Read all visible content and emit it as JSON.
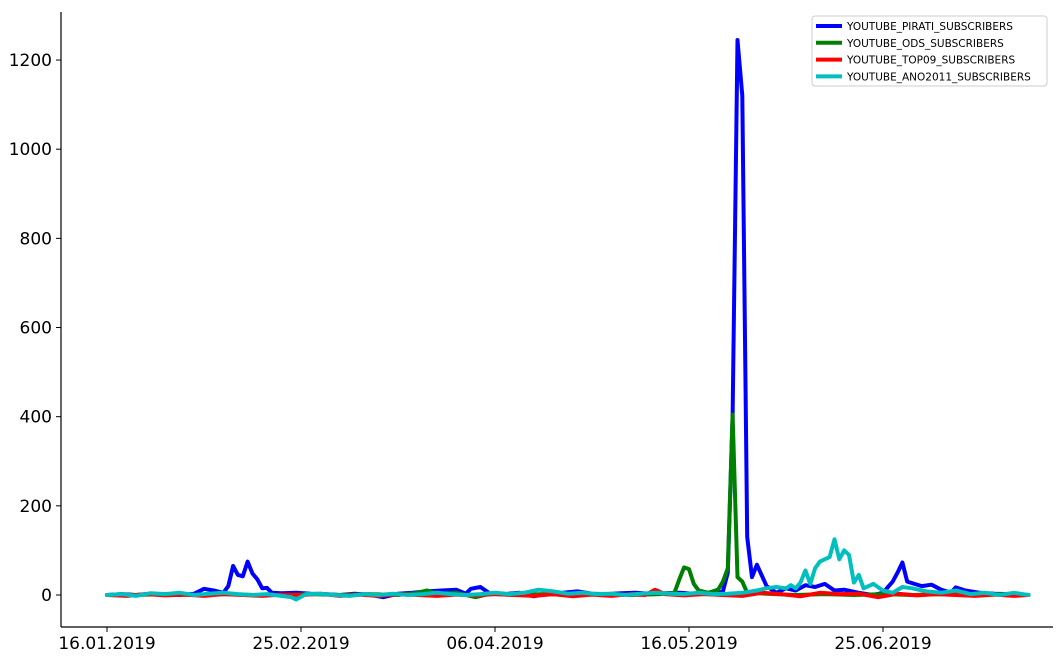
{
  "chart_data": {
    "type": "line",
    "title": "",
    "xlabel": "",
    "ylabel": "",
    "x_range": [
      "2019-01-16",
      "2019-07-25"
    ],
    "ylim": [
      -70,
      1310
    ],
    "grid": false,
    "legend_position": "top-right",
    "x_ticks": [
      "16.01.2019",
      "25.02.2019",
      "06.04.2019",
      "16.05.2019",
      "25.06.2019"
    ],
    "x_tick_dates": [
      "2019-01-16",
      "2019-02-25",
      "2019-04-06",
      "2019-05-16",
      "2019-06-25"
    ],
    "y_ticks": [
      "0",
      "200",
      "400",
      "600",
      "800",
      "1000",
      "1200"
    ],
    "y_tick_values": [
      0,
      200,
      400,
      600,
      800,
      1000,
      1200
    ],
    "series": [
      {
        "name": "YOUTUBE_PIRATI_SUBSCRIBERS",
        "color": "#0000ff",
        "points": [
          [
            "2019-01-16",
            0
          ],
          [
            "2019-01-19",
            2
          ],
          [
            "2019-01-22",
            0
          ],
          [
            "2019-01-25",
            3
          ],
          [
            "2019-01-28",
            1
          ],
          [
            "2019-01-31",
            0
          ],
          [
            "2019-02-03",
            3
          ],
          [
            "2019-02-05",
            14
          ],
          [
            "2019-02-07",
            10
          ],
          [
            "2019-02-09",
            5
          ],
          [
            "2019-02-10",
            20
          ],
          [
            "2019-02-11",
            65
          ],
          [
            "2019-02-12",
            45
          ],
          [
            "2019-02-13",
            42
          ],
          [
            "2019-02-14",
            75
          ],
          [
            "2019-02-15",
            48
          ],
          [
            "2019-02-16",
            35
          ],
          [
            "2019-02-17",
            15
          ],
          [
            "2019-02-18",
            16
          ],
          [
            "2019-02-19",
            5
          ],
          [
            "2019-02-21",
            4
          ],
          [
            "2019-02-24",
            5
          ],
          [
            "2019-02-27",
            3
          ],
          [
            "2019-03-02",
            2
          ],
          [
            "2019-03-05",
            0
          ],
          [
            "2019-03-08",
            3
          ],
          [
            "2019-03-11",
            1
          ],
          [
            "2019-03-14",
            -5
          ],
          [
            "2019-03-17",
            3
          ],
          [
            "2019-03-20",
            5
          ],
          [
            "2019-03-23",
            8
          ],
          [
            "2019-03-26",
            10
          ],
          [
            "2019-03-29",
            12
          ],
          [
            "2019-03-31",
            3
          ],
          [
            "2019-04-01",
            14
          ],
          [
            "2019-04-03",
            18
          ],
          [
            "2019-04-05",
            3
          ],
          [
            "2019-04-08",
            2
          ],
          [
            "2019-04-11",
            5
          ],
          [
            "2019-04-14",
            -3
          ],
          [
            "2019-04-17",
            3
          ],
          [
            "2019-04-20",
            5
          ],
          [
            "2019-04-23",
            8
          ],
          [
            "2019-04-26",
            3
          ],
          [
            "2019-04-29",
            2
          ],
          [
            "2019-05-02",
            4
          ],
          [
            "2019-05-05",
            5
          ],
          [
            "2019-05-08",
            3
          ],
          [
            "2019-05-11",
            4
          ],
          [
            "2019-05-14",
            5
          ],
          [
            "2019-05-17",
            3
          ],
          [
            "2019-05-20",
            5
          ],
          [
            "2019-05-23",
            8
          ],
          [
            "2019-05-24",
            50
          ],
          [
            "2019-05-25",
            400
          ],
          [
            "2019-05-26",
            1245
          ],
          [
            "2019-05-27",
            1120
          ],
          [
            "2019-05-28",
            130
          ],
          [
            "2019-05-29",
            40
          ],
          [
            "2019-05-30",
            68
          ],
          [
            "2019-06-01",
            20
          ],
          [
            "2019-06-03",
            5
          ],
          [
            "2019-06-05",
            15
          ],
          [
            "2019-06-07",
            10
          ],
          [
            "2019-06-09",
            22
          ],
          [
            "2019-06-11",
            18
          ],
          [
            "2019-06-13",
            25
          ],
          [
            "2019-06-15",
            10
          ],
          [
            "2019-06-17",
            12
          ],
          [
            "2019-06-20",
            5
          ],
          [
            "2019-06-23",
            0
          ],
          [
            "2019-06-25",
            5
          ],
          [
            "2019-06-27",
            30
          ],
          [
            "2019-06-28",
            50
          ],
          [
            "2019-06-29",
            73
          ],
          [
            "2019-06-30",
            30
          ],
          [
            "2019-07-03",
            20
          ],
          [
            "2019-07-05",
            23
          ],
          [
            "2019-07-07",
            12
          ],
          [
            "2019-07-09",
            5
          ],
          [
            "2019-07-10",
            17
          ],
          [
            "2019-07-12",
            10
          ],
          [
            "2019-07-15",
            5
          ],
          [
            "2019-07-18",
            3
          ],
          [
            "2019-07-21",
            2
          ],
          [
            "2019-07-25",
            0
          ]
        ]
      },
      {
        "name": "YOUTUBE_ODS_SUBSCRIBERS",
        "color": "#008000",
        "points": [
          [
            "2019-01-16",
            0
          ],
          [
            "2019-01-22",
            0
          ],
          [
            "2019-01-28",
            2
          ],
          [
            "2019-02-03",
            0
          ],
          [
            "2019-02-09",
            2
          ],
          [
            "2019-02-15",
            0
          ],
          [
            "2019-02-21",
            0
          ],
          [
            "2019-02-27",
            2
          ],
          [
            "2019-03-05",
            0
          ],
          [
            "2019-03-11",
            2
          ],
          [
            "2019-03-17",
            0
          ],
          [
            "2019-03-21",
            5
          ],
          [
            "2019-03-23",
            10
          ],
          [
            "2019-03-25",
            3
          ],
          [
            "2019-03-29",
            5
          ],
          [
            "2019-04-02",
            -5
          ],
          [
            "2019-04-05",
            3
          ],
          [
            "2019-04-10",
            0
          ],
          [
            "2019-04-16",
            2
          ],
          [
            "2019-04-22",
            0
          ],
          [
            "2019-04-28",
            2
          ],
          [
            "2019-05-04",
            0
          ],
          [
            "2019-05-10",
            2
          ],
          [
            "2019-05-13",
            5
          ],
          [
            "2019-05-14",
            35
          ],
          [
            "2019-05-15",
            62
          ],
          [
            "2019-05-16",
            58
          ],
          [
            "2019-05-17",
            25
          ],
          [
            "2019-05-18",
            10
          ],
          [
            "2019-05-20",
            5
          ],
          [
            "2019-05-22",
            12
          ],
          [
            "2019-05-23",
            30
          ],
          [
            "2019-05-24",
            60
          ],
          [
            "2019-05-25",
            405
          ],
          [
            "2019-05-26",
            40
          ],
          [
            "2019-05-27",
            30
          ],
          [
            "2019-05-28",
            5
          ],
          [
            "2019-06-01",
            3
          ],
          [
            "2019-06-07",
            0
          ],
          [
            "2019-06-13",
            2
          ],
          [
            "2019-06-19",
            0
          ],
          [
            "2019-06-25",
            2
          ],
          [
            "2019-07-01",
            0
          ],
          [
            "2019-07-07",
            2
          ],
          [
            "2019-07-13",
            0
          ],
          [
            "2019-07-19",
            2
          ],
          [
            "2019-07-25",
            0
          ]
        ]
      },
      {
        "name": "YOUTUBE_TOP09_SUBSCRIBERS",
        "color": "#ff0000",
        "points": [
          [
            "2019-01-16",
            0
          ],
          [
            "2019-01-20",
            -2
          ],
          [
            "2019-01-24",
            2
          ],
          [
            "2019-01-28",
            -1
          ],
          [
            "2019-02-01",
            1
          ],
          [
            "2019-02-05",
            -2
          ],
          [
            "2019-02-09",
            2
          ],
          [
            "2019-02-13",
            0
          ],
          [
            "2019-02-17",
            -2
          ],
          [
            "2019-02-21",
            1
          ],
          [
            "2019-02-25",
            0
          ],
          [
            "2019-03-01",
            3
          ],
          [
            "2019-03-05",
            -2
          ],
          [
            "2019-03-09",
            1
          ],
          [
            "2019-03-13",
            -2
          ],
          [
            "2019-03-17",
            2
          ],
          [
            "2019-03-21",
            0
          ],
          [
            "2019-03-25",
            -2
          ],
          [
            "2019-03-29",
            1
          ],
          [
            "2019-04-02",
            -1
          ],
          [
            "2019-04-06",
            2
          ],
          [
            "2019-04-10",
            0
          ],
          [
            "2019-04-14",
            -2
          ],
          [
            "2019-04-18",
            2
          ],
          [
            "2019-04-22",
            -3
          ],
          [
            "2019-04-26",
            1
          ],
          [
            "2019-04-30",
            -2
          ],
          [
            "2019-05-04",
            2
          ],
          [
            "2019-05-07",
            0
          ],
          [
            "2019-05-09",
            12
          ],
          [
            "2019-05-11",
            2
          ],
          [
            "2019-05-15",
            -1
          ],
          [
            "2019-05-19",
            2
          ],
          [
            "2019-05-23",
            0
          ],
          [
            "2019-05-27",
            -2
          ],
          [
            "2019-05-31",
            5
          ],
          [
            "2019-06-04",
            2
          ],
          [
            "2019-06-08",
            -3
          ],
          [
            "2019-06-12",
            5
          ],
          [
            "2019-06-16",
            2
          ],
          [
            "2019-06-20",
            3
          ],
          [
            "2019-06-24",
            -5
          ],
          [
            "2019-06-28",
            3
          ],
          [
            "2019-07-02",
            -1
          ],
          [
            "2019-07-06",
            2
          ],
          [
            "2019-07-10",
            0
          ],
          [
            "2019-07-14",
            -2
          ],
          [
            "2019-07-18",
            1
          ],
          [
            "2019-07-22",
            -2
          ],
          [
            "2019-07-25",
            0
          ]
        ]
      },
      {
        "name": "YOUTUBE_ANO2011_SUBSCRIBERS",
        "color": "#00bfbf",
        "points": [
          [
            "2019-01-16",
            0
          ],
          [
            "2019-01-19",
            2
          ],
          [
            "2019-01-22",
            -2
          ],
          [
            "2019-01-25",
            4
          ],
          [
            "2019-01-28",
            2
          ],
          [
            "2019-01-31",
            5
          ],
          [
            "2019-02-03",
            0
          ],
          [
            "2019-02-06",
            3
          ],
          [
            "2019-02-09",
            5
          ],
          [
            "2019-02-12",
            2
          ],
          [
            "2019-02-15",
            0
          ],
          [
            "2019-02-18",
            2
          ],
          [
            "2019-02-21",
            -2
          ],
          [
            "2019-02-23",
            -5
          ],
          [
            "2019-02-24",
            -10
          ],
          [
            "2019-02-26",
            2
          ],
          [
            "2019-03-01",
            3
          ],
          [
            "2019-03-04",
            0
          ],
          [
            "2019-03-07",
            -2
          ],
          [
            "2019-03-10",
            2
          ],
          [
            "2019-03-13",
            0
          ],
          [
            "2019-03-16",
            3
          ],
          [
            "2019-03-19",
            0
          ],
          [
            "2019-03-22",
            2
          ],
          [
            "2019-03-25",
            5
          ],
          [
            "2019-03-28",
            2
          ],
          [
            "2019-03-31",
            0
          ],
          [
            "2019-04-03",
            2
          ],
          [
            "2019-04-06",
            5
          ],
          [
            "2019-04-09",
            2
          ],
          [
            "2019-04-12",
            5
          ],
          [
            "2019-04-15",
            12
          ],
          [
            "2019-04-18",
            8
          ],
          [
            "2019-04-21",
            3
          ],
          [
            "2019-04-24",
            5
          ],
          [
            "2019-04-27",
            2
          ],
          [
            "2019-04-30",
            3
          ],
          [
            "2019-05-03",
            0
          ],
          [
            "2019-05-06",
            3
          ],
          [
            "2019-05-09",
            5
          ],
          [
            "2019-05-12",
            3
          ],
          [
            "2019-05-15",
            2
          ],
          [
            "2019-05-18",
            5
          ],
          [
            "2019-05-21",
            2
          ],
          [
            "2019-05-24",
            3
          ],
          [
            "2019-05-27",
            5
          ],
          [
            "2019-05-30",
            10
          ],
          [
            "2019-06-01",
            15
          ],
          [
            "2019-06-03",
            18
          ],
          [
            "2019-06-05",
            15
          ],
          [
            "2019-06-06",
            22
          ],
          [
            "2019-06-07",
            15
          ],
          [
            "2019-06-08",
            28
          ],
          [
            "2019-06-09",
            55
          ],
          [
            "2019-06-10",
            25
          ],
          [
            "2019-06-11",
            60
          ],
          [
            "2019-06-12",
            75
          ],
          [
            "2019-06-14",
            85
          ],
          [
            "2019-06-15",
            125
          ],
          [
            "2019-06-16",
            80
          ],
          [
            "2019-06-17",
            100
          ],
          [
            "2019-06-18",
            90
          ],
          [
            "2019-06-19",
            28
          ],
          [
            "2019-06-20",
            45
          ],
          [
            "2019-06-21",
            15
          ],
          [
            "2019-06-23",
            25
          ],
          [
            "2019-06-25",
            10
          ],
          [
            "2019-06-27",
            5
          ],
          [
            "2019-06-29",
            18
          ],
          [
            "2019-07-01",
            15
          ],
          [
            "2019-07-04",
            8
          ],
          [
            "2019-07-07",
            5
          ],
          [
            "2019-07-10",
            10
          ],
          [
            "2019-07-13",
            2
          ],
          [
            "2019-07-16",
            5
          ],
          [
            "2019-07-19",
            0
          ],
          [
            "2019-07-22",
            5
          ],
          [
            "2019-07-25",
            0
          ]
        ]
      }
    ]
  }
}
